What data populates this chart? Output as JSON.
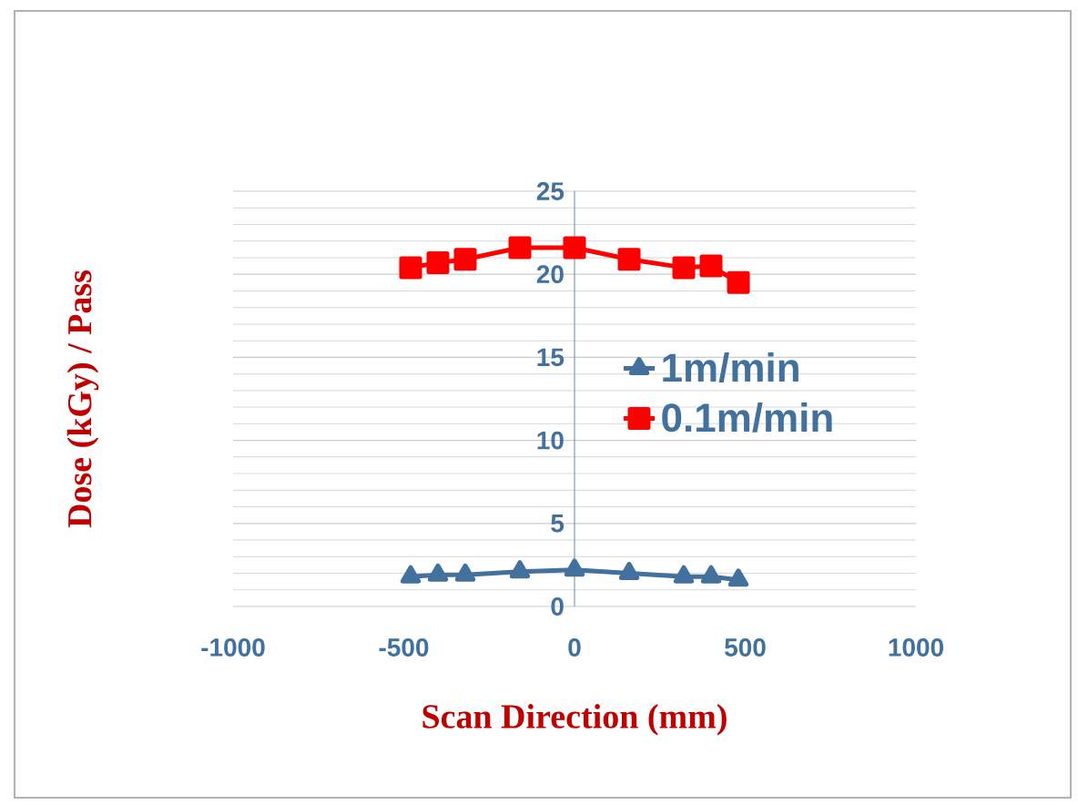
{
  "chart_data": {
    "type": "line",
    "xlabel": "Scan Direction (mm)",
    "ylabel": "Dose (kGy) / Pass",
    "xlim": [
      -1000,
      1000
    ],
    "xticks": [
      -1000,
      -500,
      0,
      500,
      1000
    ],
    "ylim": [
      0,
      25
    ],
    "yticks": [
      0,
      5,
      10,
      15,
      20,
      25
    ],
    "grid": "y",
    "legend": "right",
    "line_style": "solid",
    "series": [
      {
        "name": "1m/min",
        "color": "#41719c",
        "marker": "triangle",
        "x": [
          -480,
          -400,
          -320,
          -160,
          0,
          160,
          320,
          400,
          480
        ],
        "values": [
          1.8,
          1.9,
          1.9,
          2.1,
          2.2,
          2.0,
          1.8,
          1.8,
          1.6
        ]
      },
      {
        "name": "0.1m/min",
        "color": "#ff0000",
        "marker": "square",
        "x": [
          -480,
          -400,
          -320,
          -160,
          0,
          160,
          320,
          400,
          480
        ],
        "values": [
          20.4,
          20.7,
          20.9,
          21.6,
          21.6,
          20.9,
          20.4,
          20.5,
          19.5
        ]
      }
    ]
  }
}
